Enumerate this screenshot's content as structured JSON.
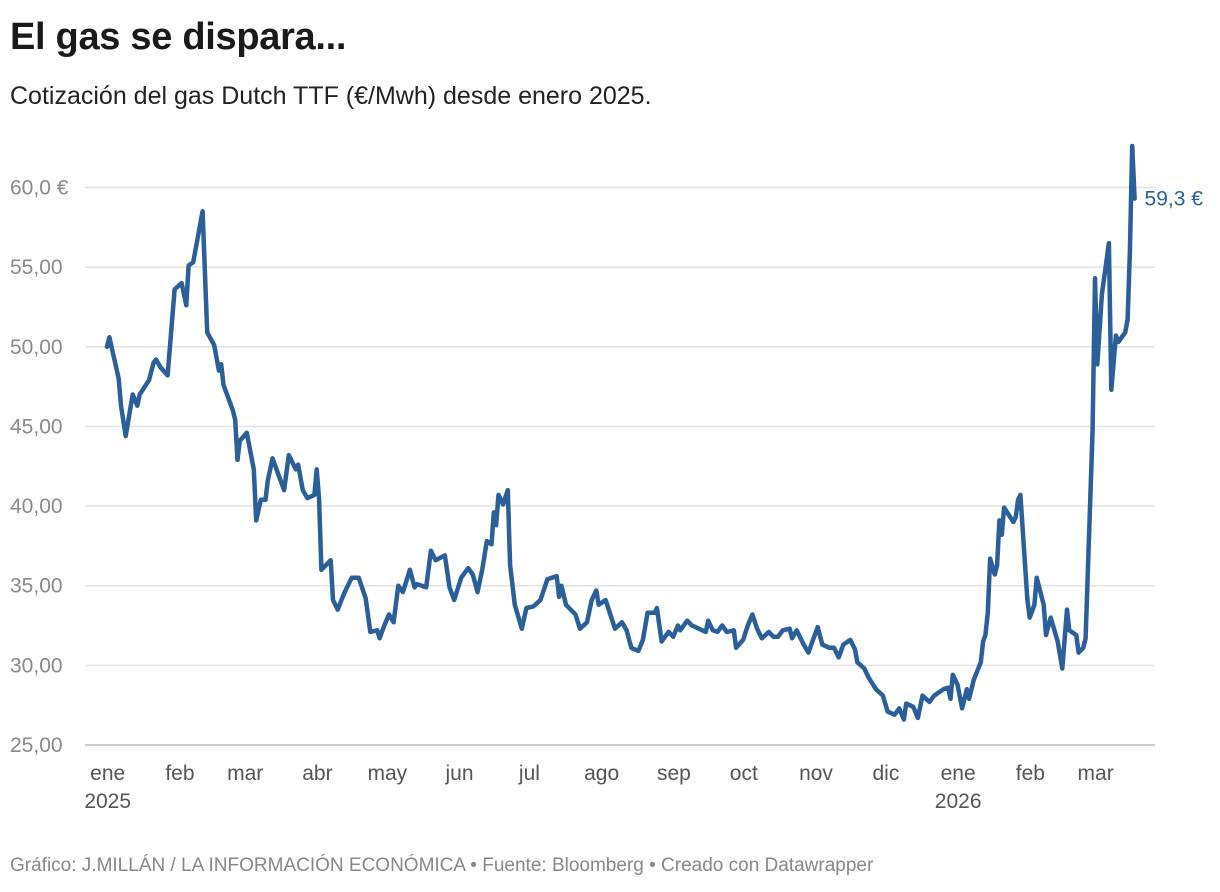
{
  "title": "El gas se dispara...",
  "subtitle": "Cotización del gas Dutch TTF (€/Mwh) desde enero 2025.",
  "footer": "Gráfico: J.MILLÁN / LA INFORMACIÓN ECONÓMICA • Fuente: Bloomberg • Creado con Datawrapper",
  "chart_data": {
    "type": "line",
    "title": "El gas se dispara...",
    "subtitle": "Cotización del gas Dutch TTF (€/Mwh) desde enero 2025.",
    "ylim": [
      25,
      63
    ],
    "grid": true,
    "line_color": "#2a5f99",
    "y_ticks": [
      {
        "value": 25,
        "label": "25,00"
      },
      {
        "value": 30,
        "label": "30,00"
      },
      {
        "value": 35,
        "label": "35,00"
      },
      {
        "value": 40,
        "label": "40,00"
      },
      {
        "value": 45,
        "label": "45,00"
      },
      {
        "value": 50,
        "label": "50,00"
      },
      {
        "value": 55,
        "label": "55,00"
      },
      {
        "value": 60,
        "label": "60,0 €"
      }
    ],
    "x_ticks": [
      {
        "date": "2025-01-01",
        "label": "ene",
        "year": "2025"
      },
      {
        "date": "2025-02-01",
        "label": "feb"
      },
      {
        "date": "2025-03-01",
        "label": "mar"
      },
      {
        "date": "2025-04-01",
        "label": "abr"
      },
      {
        "date": "2025-05-01",
        "label": "may"
      },
      {
        "date": "2025-06-01",
        "label": "jun"
      },
      {
        "date": "2025-07-01",
        "label": "jul"
      },
      {
        "date": "2025-08-01",
        "label": "ago"
      },
      {
        "date": "2025-09-01",
        "label": "sep"
      },
      {
        "date": "2025-10-01",
        "label": "oct"
      },
      {
        "date": "2025-11-01",
        "label": "nov"
      },
      {
        "date": "2025-12-01",
        "label": "dic"
      },
      {
        "date": "2026-01-01",
        "label": "ene",
        "year": "2026"
      },
      {
        "date": "2026-02-01",
        "label": "feb"
      },
      {
        "date": "2026-03-01",
        "label": "mar"
      }
    ],
    "end_label": "59,3 €",
    "series": [
      {
        "points": [
          [
            "2025-01-02",
            50.0
          ],
          [
            "2025-01-03",
            50.6
          ],
          [
            "2025-01-07",
            48.0
          ],
          [
            "2025-01-08",
            46.3
          ],
          [
            "2025-01-10",
            44.4
          ],
          [
            "2025-01-13",
            47.0
          ],
          [
            "2025-01-15",
            46.3
          ],
          [
            "2025-01-16",
            47.0
          ],
          [
            "2025-01-20",
            47.9
          ],
          [
            "2025-01-22",
            49.0
          ],
          [
            "2025-01-23",
            49.2
          ],
          [
            "2025-01-25",
            48.7
          ],
          [
            "2025-01-28",
            48.2
          ],
          [
            "2025-01-31",
            53.6
          ],
          [
            "2025-02-03",
            54.0
          ],
          [
            "2025-02-05",
            52.6
          ],
          [
            "2025-02-06",
            55.1
          ],
          [
            "2025-02-08",
            55.3
          ],
          [
            "2025-02-12",
            58.5
          ],
          [
            "2025-02-14",
            50.9
          ],
          [
            "2025-02-17",
            50.1
          ],
          [
            "2025-02-19",
            48.5
          ],
          [
            "2025-02-20",
            48.9
          ],
          [
            "2025-02-21",
            47.6
          ],
          [
            "2025-02-25",
            46.0
          ],
          [
            "2025-02-26",
            45.4
          ],
          [
            "2025-02-27",
            42.9
          ],
          [
            "2025-02-28",
            44.1
          ],
          [
            "2025-03-03",
            44.6
          ],
          [
            "2025-03-06",
            42.3
          ],
          [
            "2025-03-07",
            39.1
          ],
          [
            "2025-03-09",
            40.4
          ],
          [
            "2025-03-11",
            40.4
          ],
          [
            "2025-03-12",
            41.6
          ],
          [
            "2025-03-14",
            43.0
          ],
          [
            "2025-03-19",
            41.0
          ],
          [
            "2025-03-21",
            43.2
          ],
          [
            "2025-03-24",
            42.3
          ],
          [
            "2025-03-25",
            42.6
          ],
          [
            "2025-03-27",
            41.0
          ],
          [
            "2025-03-29",
            40.5
          ],
          [
            "2025-04-01",
            40.7
          ],
          [
            "2025-04-02",
            42.3
          ],
          [
            "2025-04-03",
            40.4
          ],
          [
            "2025-04-04",
            36.0
          ],
          [
            "2025-04-08",
            36.6
          ],
          [
            "2025-04-09",
            34.1
          ],
          [
            "2025-04-11",
            33.5
          ],
          [
            "2025-04-14",
            34.6
          ],
          [
            "2025-04-17",
            35.5
          ],
          [
            "2025-04-20",
            35.5
          ],
          [
            "2025-04-23",
            34.2
          ],
          [
            "2025-04-25",
            32.1
          ],
          [
            "2025-04-28",
            32.2
          ],
          [
            "2025-04-29",
            31.7
          ],
          [
            "2025-05-01",
            32.5
          ],
          [
            "2025-05-03",
            33.2
          ],
          [
            "2025-05-05",
            32.7
          ],
          [
            "2025-05-07",
            35.0
          ],
          [
            "2025-05-09",
            34.6
          ],
          [
            "2025-05-12",
            36.0
          ],
          [
            "2025-05-14",
            34.9
          ],
          [
            "2025-05-15",
            35.1
          ],
          [
            "2025-05-19",
            34.9
          ],
          [
            "2025-05-21",
            37.2
          ],
          [
            "2025-05-23",
            36.6
          ],
          [
            "2025-05-27",
            36.9
          ],
          [
            "2025-05-29",
            34.9
          ],
          [
            "2025-05-31",
            34.1
          ],
          [
            "2025-06-03",
            35.5
          ],
          [
            "2025-06-06",
            36.1
          ],
          [
            "2025-06-08",
            35.7
          ],
          [
            "2025-06-10",
            34.6
          ],
          [
            "2025-06-12",
            36.0
          ],
          [
            "2025-06-14",
            37.8
          ],
          [
            "2025-06-16",
            37.6
          ],
          [
            "2025-06-17",
            39.6
          ],
          [
            "2025-06-18",
            38.8
          ],
          [
            "2025-06-19",
            40.7
          ],
          [
            "2025-06-21",
            40.1
          ],
          [
            "2025-06-23",
            41.0
          ],
          [
            "2025-06-24",
            36.3
          ],
          [
            "2025-06-26",
            33.8
          ],
          [
            "2025-06-29",
            32.3
          ],
          [
            "2025-07-01",
            33.6
          ],
          [
            "2025-07-04",
            33.7
          ],
          [
            "2025-07-07",
            34.1
          ],
          [
            "2025-07-10",
            35.4
          ],
          [
            "2025-07-14",
            35.6
          ],
          [
            "2025-07-15",
            34.3
          ],
          [
            "2025-07-16",
            35.0
          ],
          [
            "2025-07-18",
            33.8
          ],
          [
            "2025-07-22",
            33.2
          ],
          [
            "2025-07-24",
            32.3
          ],
          [
            "2025-07-27",
            32.7
          ],
          [
            "2025-07-29",
            34.1
          ],
          [
            "2025-07-31",
            34.7
          ],
          [
            "2025-08-01",
            33.8
          ],
          [
            "2025-08-04",
            34.1
          ],
          [
            "2025-08-08",
            32.3
          ],
          [
            "2025-08-11",
            32.7
          ],
          [
            "2025-08-13",
            32.2
          ],
          [
            "2025-08-15",
            31.1
          ],
          [
            "2025-08-18",
            30.9
          ],
          [
            "2025-08-20",
            31.6
          ],
          [
            "2025-08-22",
            33.3
          ],
          [
            "2025-08-25",
            33.3
          ],
          [
            "2025-08-26",
            33.6
          ],
          [
            "2025-08-28",
            31.5
          ],
          [
            "2025-08-31",
            32.1
          ],
          [
            "2025-09-02",
            31.8
          ],
          [
            "2025-09-04",
            32.5
          ],
          [
            "2025-09-05",
            32.2
          ],
          [
            "2025-09-08",
            32.8
          ],
          [
            "2025-09-10",
            32.5
          ],
          [
            "2025-09-13",
            32.3
          ],
          [
            "2025-09-16",
            32.1
          ],
          [
            "2025-09-17",
            32.8
          ],
          [
            "2025-09-19",
            32.2
          ],
          [
            "2025-09-21",
            32.1
          ],
          [
            "2025-09-23",
            32.5
          ],
          [
            "2025-09-25",
            32.1
          ],
          [
            "2025-09-28",
            32.2
          ],
          [
            "2025-09-29",
            31.1
          ],
          [
            "2025-10-02",
            31.6
          ],
          [
            "2025-10-04",
            32.5
          ],
          [
            "2025-10-06",
            33.2
          ],
          [
            "2025-10-08",
            32.3
          ],
          [
            "2025-10-10",
            31.7
          ],
          [
            "2025-10-13",
            32.1
          ],
          [
            "2025-10-15",
            31.8
          ],
          [
            "2025-10-17",
            31.8
          ],
          [
            "2025-10-19",
            32.2
          ],
          [
            "2025-10-22",
            32.3
          ],
          [
            "2025-10-23",
            31.7
          ],
          [
            "2025-10-25",
            32.2
          ],
          [
            "2025-10-28",
            31.3
          ],
          [
            "2025-10-30",
            30.8
          ],
          [
            "2025-11-01",
            31.6
          ],
          [
            "2025-11-03",
            32.4
          ],
          [
            "2025-11-05",
            31.3
          ],
          [
            "2025-11-08",
            31.1
          ],
          [
            "2025-11-10",
            31.1
          ],
          [
            "2025-11-12",
            30.5
          ],
          [
            "2025-11-14",
            31.3
          ],
          [
            "2025-11-17",
            31.6
          ],
          [
            "2025-11-19",
            31.0
          ],
          [
            "2025-11-20",
            30.2
          ],
          [
            "2025-11-23",
            29.8
          ],
          [
            "2025-11-25",
            29.2
          ],
          [
            "2025-11-28",
            28.5
          ],
          [
            "2025-12-01",
            28.1
          ],
          [
            "2025-12-03",
            27.1
          ],
          [
            "2025-12-06",
            26.9
          ],
          [
            "2025-12-08",
            27.3
          ],
          [
            "2025-12-10",
            26.6
          ],
          [
            "2025-12-11",
            27.6
          ],
          [
            "2025-12-14",
            27.4
          ],
          [
            "2025-12-16",
            26.7
          ],
          [
            "2025-12-18",
            28.1
          ],
          [
            "2025-12-21",
            27.7
          ],
          [
            "2025-12-23",
            28.1
          ],
          [
            "2025-12-27",
            28.5
          ],
          [
            "2025-12-29",
            28.6
          ],
          [
            "2025-12-30",
            27.9
          ],
          [
            "2025-12-31",
            29.4
          ],
          [
            "2026-01-02",
            28.8
          ],
          [
            "2026-01-04",
            27.3
          ],
          [
            "2026-01-06",
            28.5
          ],
          [
            "2026-01-07",
            27.9
          ],
          [
            "2026-01-09",
            29.1
          ],
          [
            "2026-01-12",
            30.2
          ],
          [
            "2026-01-13",
            31.5
          ],
          [
            "2026-01-14",
            31.9
          ],
          [
            "2026-01-15",
            33.3
          ],
          [
            "2026-01-16",
            36.7
          ],
          [
            "2026-01-18",
            35.7
          ],
          [
            "2026-01-19",
            36.3
          ],
          [
            "2026-01-20",
            39.1
          ],
          [
            "2026-01-21",
            38.2
          ],
          [
            "2026-01-22",
            39.9
          ],
          [
            "2026-01-26",
            39.0
          ],
          [
            "2026-01-27",
            39.3
          ],
          [
            "2026-01-28",
            40.4
          ],
          [
            "2026-01-29",
            40.7
          ],
          [
            "2026-02-01",
            34.1
          ],
          [
            "2026-02-02",
            33.0
          ],
          [
            "2026-02-04",
            33.8
          ],
          [
            "2026-02-05",
            35.5
          ],
          [
            "2026-02-08",
            33.8
          ],
          [
            "2026-02-09",
            31.9
          ],
          [
            "2026-02-11",
            33.0
          ],
          [
            "2026-02-14",
            31.5
          ],
          [
            "2026-02-16",
            29.8
          ],
          [
            "2026-02-18",
            33.5
          ],
          [
            "2026-02-19",
            32.2
          ],
          [
            "2026-02-22",
            31.9
          ],
          [
            "2026-02-23",
            30.8
          ],
          [
            "2026-02-25",
            31.1
          ],
          [
            "2026-02-26",
            31.7
          ],
          [
            "2026-03-01",
            44.8
          ],
          [
            "2026-03-02",
            54.3
          ],
          [
            "2026-03-03",
            48.9
          ],
          [
            "2026-03-05",
            53.3
          ],
          [
            "2026-03-08",
            56.5
          ],
          [
            "2026-03-09",
            47.3
          ],
          [
            "2026-03-11",
            50.7
          ],
          [
            "2026-03-12",
            50.3
          ],
          [
            "2026-03-15",
            50.9
          ],
          [
            "2026-03-16",
            51.7
          ],
          [
            "2026-03-17",
            56.0
          ],
          [
            "2026-03-18",
            62.6
          ],
          [
            "2026-03-19",
            59.3
          ]
        ]
      }
    ]
  }
}
